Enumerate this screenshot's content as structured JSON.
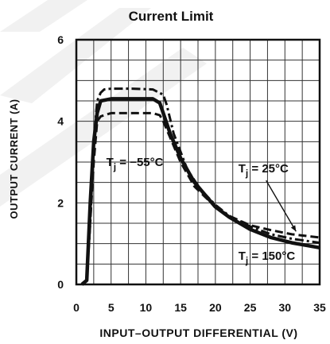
{
  "chart_data": {
    "type": "line",
    "title": "Current Limit",
    "xlabel": "INPUT–OUTPUT DIFFERENTIAL (V)",
    "ylabel": "OUTPUT CURRENT (A)",
    "xlim": [
      0,
      35
    ],
    "ylim": [
      0,
      6
    ],
    "x_ticks": [
      "0",
      "5",
      "10",
      "15",
      "20",
      "25",
      "30",
      "35"
    ],
    "y_ticks": [
      "0",
      "2",
      "4",
      "6"
    ],
    "grid": true,
    "series": [
      {
        "name": "Tj = −55°C",
        "style": "dash-dot",
        "x": [
          0.8,
          1.5,
          2.0,
          2.5,
          3.0,
          3.5,
          4.0,
          5.0,
          8.0,
          11.0,
          12.5,
          13.0,
          14.0,
          16.0,
          18.0,
          20.0,
          22.0,
          25.0,
          28.0,
          31.0,
          33.0,
          35.0
        ],
        "y": [
          0,
          0.1,
          1.5,
          3.5,
          4.5,
          4.7,
          4.78,
          4.8,
          4.8,
          4.78,
          4.65,
          4.4,
          3.7,
          2.8,
          2.3,
          1.95,
          1.68,
          1.42,
          1.23,
          1.12,
          1.07,
          1.02
        ]
      },
      {
        "name": "Tj = 25°C",
        "style": "dashed",
        "x": [
          0.8,
          1.5,
          2.5,
          3.0,
          3.5,
          4.0,
          5.0,
          8.0,
          11.0,
          12.0,
          12.5,
          13.5,
          15.0,
          17.0,
          20.0,
          22.0,
          25.0,
          28.0,
          31.0,
          33.0,
          35.0
        ],
        "y": [
          0,
          0.1,
          3.0,
          4.0,
          4.12,
          4.15,
          4.2,
          4.2,
          4.2,
          4.15,
          4.0,
          3.6,
          3.0,
          2.4,
          1.9,
          1.68,
          1.45,
          1.33,
          1.23,
          1.19,
          1.15
        ]
      },
      {
        "name": "Tj = 150°C",
        "style": "solid",
        "x": [
          0.8,
          1.5,
          2.0,
          2.5,
          3.0,
          3.5,
          5.0,
          8.0,
          11.0,
          12.0,
          12.5,
          13.5,
          15.0,
          17.0,
          20.0,
          22.0,
          25.0,
          28.0,
          31.0,
          33.0,
          35.0
        ],
        "y": [
          0,
          0.1,
          2.0,
          3.5,
          4.2,
          4.5,
          4.55,
          4.55,
          4.55,
          4.45,
          4.2,
          3.7,
          3.1,
          2.5,
          1.9,
          1.65,
          1.35,
          1.15,
          1.02,
          0.96,
          0.9
        ]
      }
    ],
    "annotations": [
      {
        "text": "T",
        "sub": "j",
        "rest": " = −55°C",
        "x": 4.3,
        "y": 2.9
      },
      {
        "text": "T",
        "sub": "j",
        "rest": " = 25°C",
        "x": 23.3,
        "y": 2.75
      },
      {
        "text": "T",
        "sub": "j",
        "rest": " = 150°C",
        "x": 23.3,
        "y": 0.6
      }
    ]
  },
  "colors": {
    "ink": "#111111",
    "grid": "#333333",
    "watermark": "#d8d8d8"
  }
}
